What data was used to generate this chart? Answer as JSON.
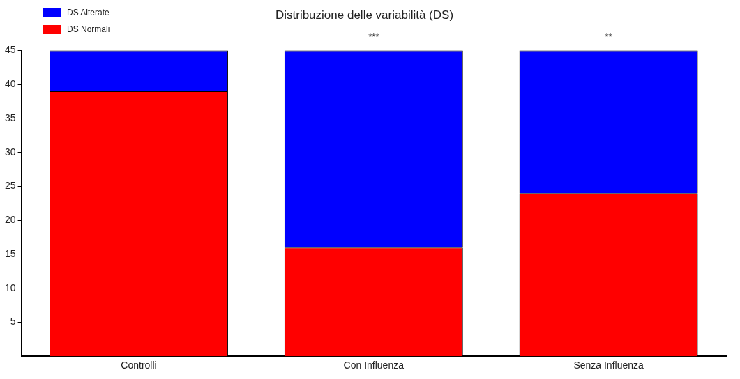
{
  "chart_data": {
    "type": "bar",
    "title": "Distribuzione delle variabilità (DS)",
    "categories": [
      "Controlli",
      "Con Influenza",
      "Senza Influenza"
    ],
    "stacked": true,
    "series": [
      {
        "name": "DS Normali",
        "color": "#ff0000",
        "values": [
          39,
          16,
          24
        ]
      },
      {
        "name": "DS Alterate",
        "color": "#0000ff",
        "values": [
          6,
          29,
          21
        ]
      }
    ],
    "ylim": [
      0,
      45
    ],
    "yticks": [
      5,
      10,
      15,
      20,
      25,
      30,
      35,
      40,
      45
    ],
    "grid": false,
    "legend": "top left",
    "annotations": [
      {
        "text": "***",
        "x": "Con Influenza",
        "y": 45
      },
      {
        "text": "**",
        "x": "Senza Influenza",
        "y": 45
      }
    ]
  }
}
